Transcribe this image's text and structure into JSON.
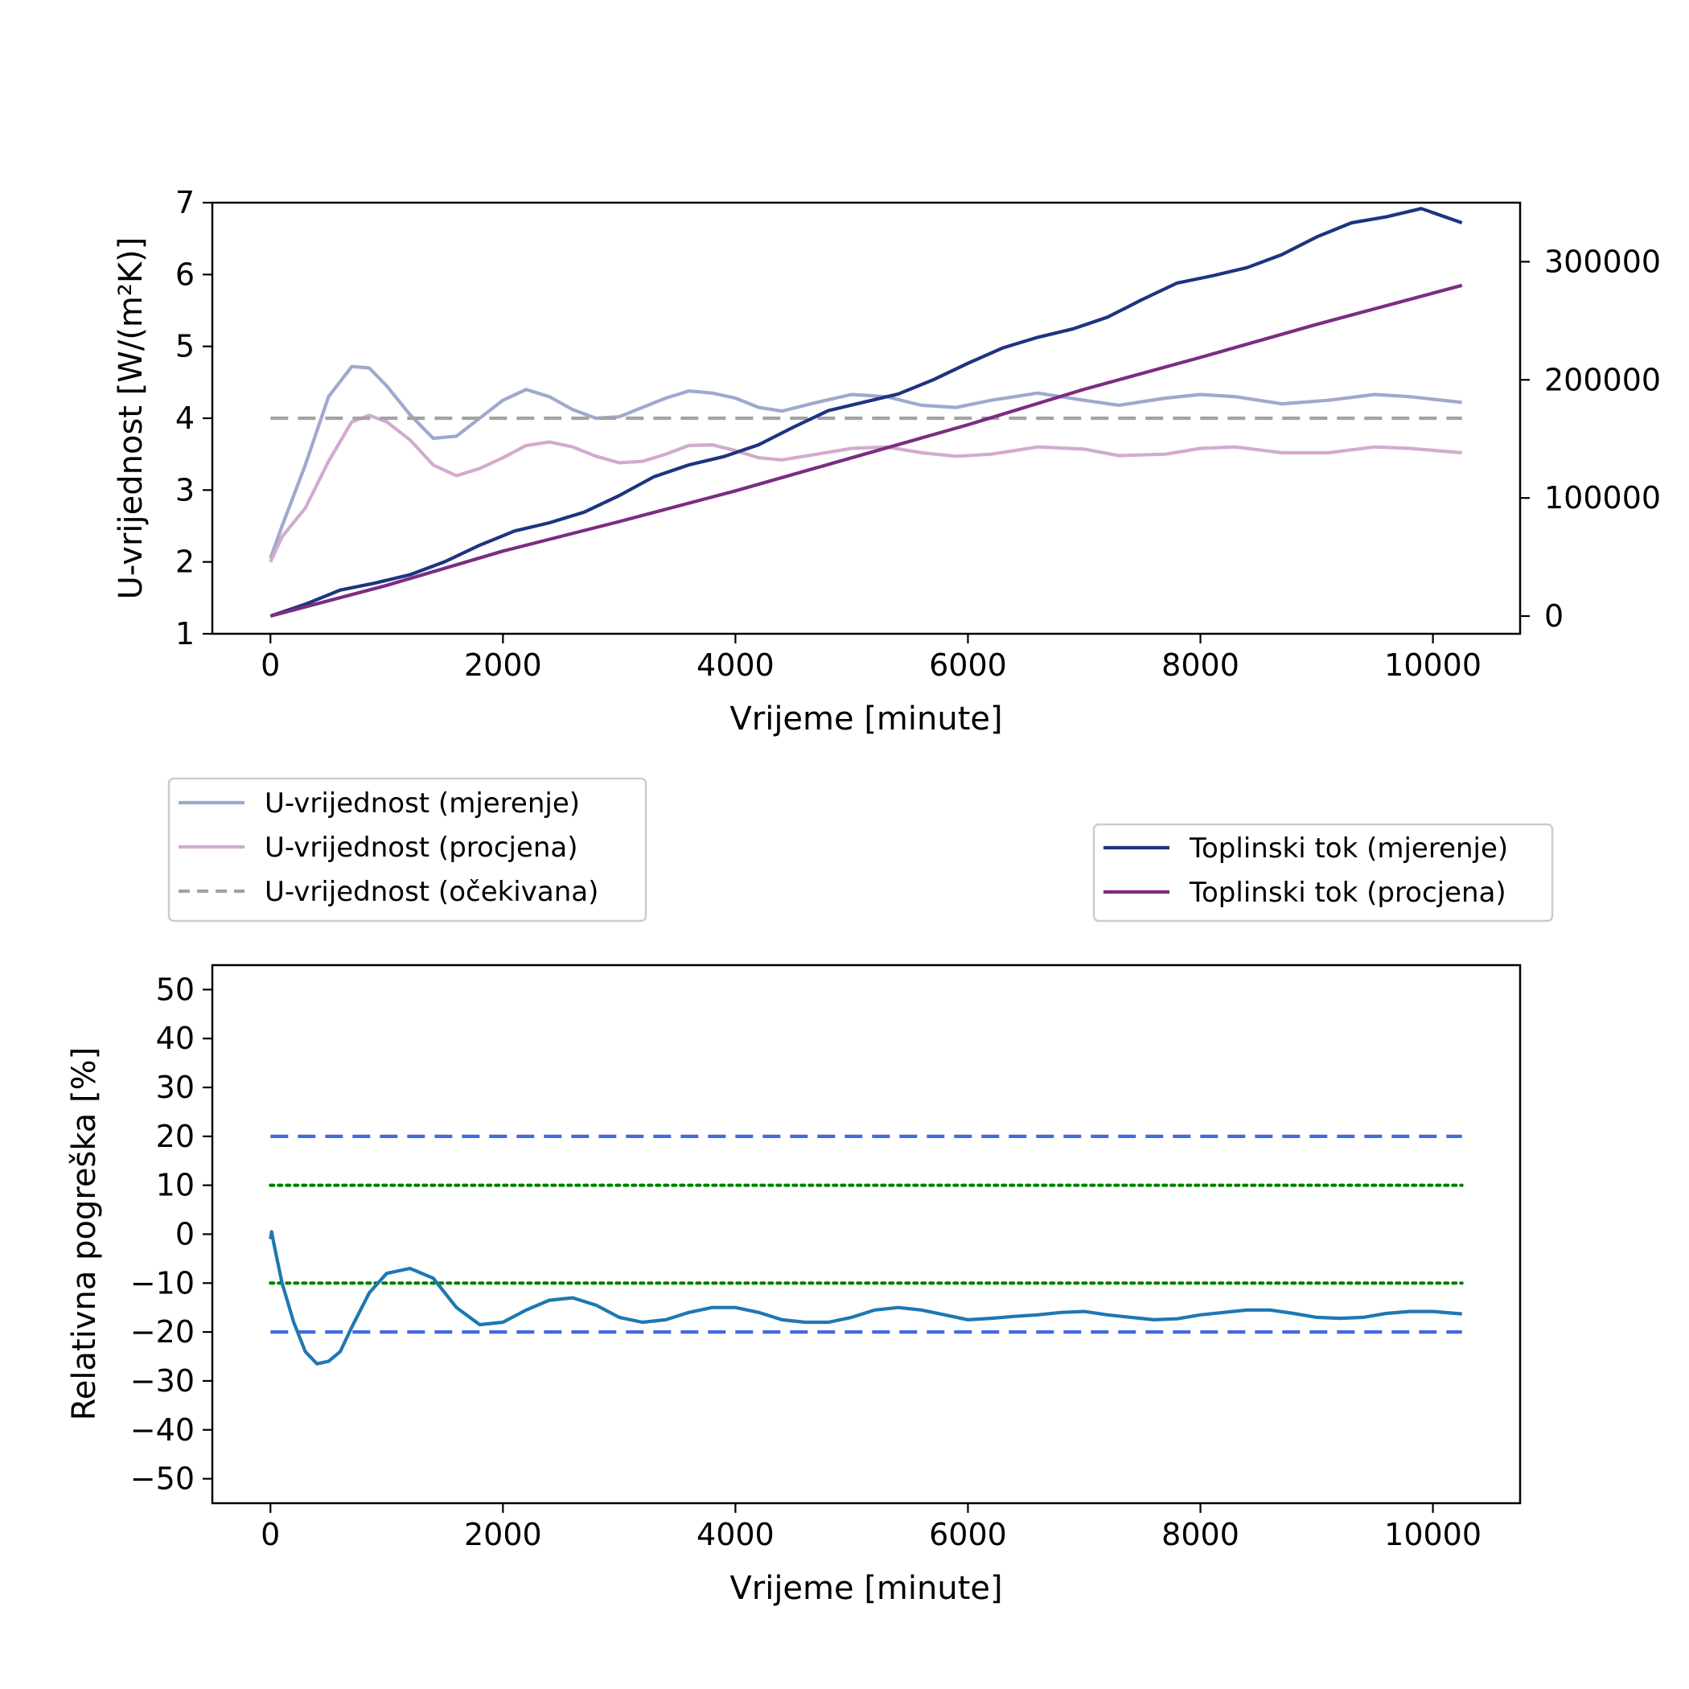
{
  "chart_data": [
    {
      "type": "line",
      "xlabel": "Vrijeme [minute]",
      "ylabel": "U-vrijednost [W/(m²K)]",
      "y2label": "",
      "xlim": [
        -500,
        10750
      ],
      "ylim": [
        1,
        7
      ],
      "y2lim": [
        -15000,
        350000
      ],
      "xticks": [
        0,
        2000,
        4000,
        6000,
        8000,
        10000
      ],
      "yticks": [
        1,
        2,
        3,
        4,
        5,
        6,
        7
      ],
      "y2ticks": [
        0,
        100000,
        200000,
        300000
      ],
      "grid": false,
      "legend_left": "below plot, left",
      "legend_right": "below plot, right",
      "series": [
        {
          "name": "U-vrijednost (mjerenje)",
          "axis": "left",
          "color": "#9fa9cc",
          "style": "solid",
          "x": [
            0,
            100,
            300,
            500,
            700,
            850,
            1000,
            1200,
            1400,
            1600,
            1800,
            2000,
            2200,
            2400,
            2600,
            2800,
            3000,
            3200,
            3400,
            3600,
            3800,
            4000,
            4200,
            4400,
            4700,
            5000,
            5300,
            5600,
            5900,
            6200,
            6600,
            7000,
            7300,
            7700,
            8000,
            8300,
            8700,
            9100,
            9500,
            9800,
            10250
          ],
          "y": [
            2.05,
            2.5,
            3.35,
            4.3,
            4.72,
            4.7,
            4.45,
            4.05,
            3.72,
            3.75,
            4.0,
            4.25,
            4.4,
            4.3,
            4.12,
            4.0,
            4.02,
            4.15,
            4.28,
            4.38,
            4.35,
            4.28,
            4.15,
            4.1,
            4.22,
            4.33,
            4.3,
            4.18,
            4.15,
            4.25,
            4.35,
            4.25,
            4.18,
            4.28,
            4.33,
            4.3,
            4.2,
            4.25,
            4.33,
            4.3,
            4.22
          ]
        },
        {
          "name": "U-vrijednost (procjena)",
          "axis": "left",
          "color": "#d2abcf",
          "style": "solid",
          "x": [
            0,
            100,
            300,
            500,
            700,
            850,
            1000,
            1200,
            1400,
            1600,
            1800,
            2000,
            2200,
            2400,
            2600,
            2800,
            3000,
            3200,
            3400,
            3600,
            3800,
            4000,
            4200,
            4400,
            4700,
            5000,
            5300,
            5600,
            5900,
            6200,
            6600,
            7000,
            7300,
            7700,
            8000,
            8300,
            8700,
            9100,
            9500,
            9800,
            10250
          ],
          "y": [
            2.0,
            2.35,
            2.75,
            3.4,
            3.95,
            4.04,
            3.95,
            3.7,
            3.35,
            3.2,
            3.3,
            3.45,
            3.62,
            3.67,
            3.6,
            3.47,
            3.38,
            3.4,
            3.5,
            3.62,
            3.63,
            3.55,
            3.45,
            3.42,
            3.5,
            3.58,
            3.6,
            3.52,
            3.47,
            3.5,
            3.6,
            3.57,
            3.48,
            3.5,
            3.58,
            3.6,
            3.52,
            3.52,
            3.6,
            3.58,
            3.52
          ]
        },
        {
          "name": "U-vrijednost (očekivana)",
          "axis": "left",
          "color": "#a3a3a3",
          "style": "dashed",
          "x": [
            0,
            10250
          ],
          "y": [
            4,
            4
          ]
        },
        {
          "name": "Toplinski tok (mjerenje)",
          "axis": "right",
          "color": "#1e3480",
          "style": "solid",
          "x": [
            0,
            300,
            600,
            900,
            1200,
            1500,
            1800,
            2100,
            2400,
            2700,
            3000,
            3300,
            3600,
            3900,
            4200,
            4500,
            4800,
            5100,
            5400,
            5700,
            6000,
            6300,
            6600,
            6900,
            7200,
            7500,
            7800,
            8100,
            8400,
            8700,
            9000,
            9300,
            9600,
            9900,
            10250
          ],
          "y": [
            0,
            10000,
            22000,
            28000,
            35000,
            46000,
            60000,
            72000,
            79000,
            88000,
            102000,
            118000,
            128000,
            135000,
            145000,
            160000,
            174000,
            181000,
            188000,
            200000,
            214000,
            227000,
            236000,
            243000,
            253000,
            268000,
            282000,
            288000,
            295000,
            306000,
            321000,
            333000,
            338000,
            345000,
            333000
          ]
        },
        {
          "name": "Toplinski tok (procjena)",
          "axis": "right",
          "color": "#7b2d80",
          "style": "solid",
          "x": [
            0,
            1000,
            2000,
            3000,
            4000,
            5000,
            6000,
            7000,
            8000,
            9000,
            10250
          ],
          "y": [
            0,
            26000,
            55000,
            80000,
            106000,
            134000,
            162000,
            192000,
            219000,
            247000,
            280000
          ]
        }
      ]
    },
    {
      "type": "line",
      "xlabel": "Vrijeme [minute]",
      "ylabel": "Relativna pogreška [%]",
      "xlim": [
        -500,
        10750
      ],
      "ylim": [
        -55,
        55
      ],
      "xticks": [
        0,
        2000,
        4000,
        6000,
        8000,
        10000
      ],
      "yticks": [
        -50,
        -40,
        -30,
        -20,
        -10,
        0,
        10,
        20,
        30,
        40,
        50
      ],
      "ytick_labels": [
        "−50",
        "−40",
        "−30",
        "−20",
        "−10",
        "0",
        "10",
        "20",
        "30",
        "40",
        "50"
      ],
      "grid": false,
      "series": [
        {
          "color": "#1f77b4",
          "style": "solid",
          "x": [
            0,
            10,
            30,
            100,
            200,
            300,
            400,
            500,
            600,
            700,
            850,
            1000,
            1200,
            1400,
            1600,
            1800,
            2000,
            2200,
            2400,
            2600,
            2800,
            3000,
            3200,
            3400,
            3600,
            3800,
            4000,
            4200,
            4400,
            4600,
            4800,
            5000,
            5200,
            5400,
            5600,
            5800,
            6000,
            6200,
            6400,
            6600,
            6800,
            7000,
            7200,
            7400,
            7600,
            7800,
            8000,
            8200,
            8400,
            8600,
            8800,
            9000,
            9200,
            9400,
            9600,
            9800,
            10000,
            10250
          ],
          "y": [
            -1,
            0.5,
            -2,
            -10,
            -18,
            -24,
            -26.5,
            -26,
            -24,
            -19,
            -12,
            -8,
            -7,
            -9,
            -15,
            -18.5,
            -18,
            -15.5,
            -13.5,
            -13,
            -14.5,
            -17,
            -18,
            -17.5,
            -16,
            -15,
            -15,
            -16,
            -17.5,
            -18,
            -18,
            -17,
            -15.5,
            -15,
            -15.5,
            -16.5,
            -17.5,
            -17.2,
            -16.8,
            -16.5,
            -16,
            -15.8,
            -16.5,
            -17,
            -17.5,
            -17.3,
            -16.5,
            -16,
            -15.5,
            -15.5,
            -16.2,
            -17,
            -17.2,
            -17,
            -16.2,
            -15.8,
            -15.8,
            -16.3
          ]
        },
        {
          "color": "#4169e1",
          "style": "dashed",
          "x": [
            0,
            10250
          ],
          "y": [
            20,
            20
          ]
        },
        {
          "color": "#4169e1",
          "style": "dashed",
          "x": [
            0,
            10250
          ],
          "y": [
            -20,
            -20
          ]
        },
        {
          "color": "#008000",
          "style": "dotted",
          "x": [
            0,
            10250
          ],
          "y": [
            10,
            10
          ]
        },
        {
          "color": "#008000",
          "style": "dotted",
          "x": [
            0,
            10250
          ],
          "y": [
            -10,
            -10
          ]
        }
      ]
    }
  ]
}
